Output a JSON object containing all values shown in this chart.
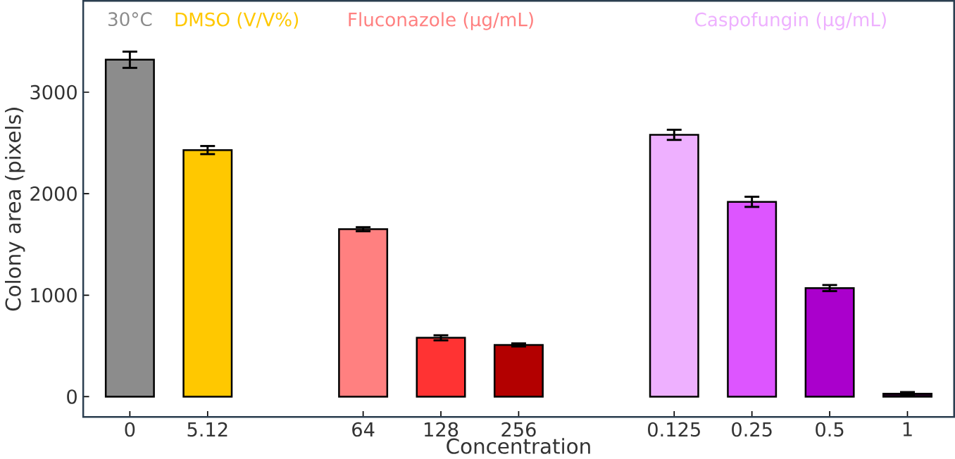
{
  "chart_data": {
    "type": "bar",
    "xlabel": "Concentration",
    "ylabel": "Colony area (pixels)",
    "categories": [
      "0",
      "5.12",
      null,
      "64",
      "128",
      "256",
      null,
      "0.125",
      "0.25",
      "0.5",
      "1"
    ],
    "values": [
      3320,
      2430,
      null,
      1650,
      580,
      510,
      null,
      2580,
      1920,
      1070,
      30
    ],
    "errors": [
      80,
      40,
      null,
      20,
      25,
      15,
      null,
      50,
      50,
      30,
      15
    ],
    "colors": [
      "#8c8c8c",
      "#ffc800",
      "#ffffff",
      "#ff8080",
      "#ff3333",
      "#b30000",
      "#ffffff",
      "#eeb0ff",
      "#dd55ff",
      "#aa00cc",
      "#220022"
    ],
    "annotations": [
      "30°C",
      "DMSO (V/V%)",
      "Fluconazole (µg/mL)",
      "Caspofungin (µg/mL)"
    ],
    "ylim": [
      -200,
      3900
    ],
    "yticks": [
      0,
      1000,
      2000,
      3000
    ],
    "grid": false
  }
}
